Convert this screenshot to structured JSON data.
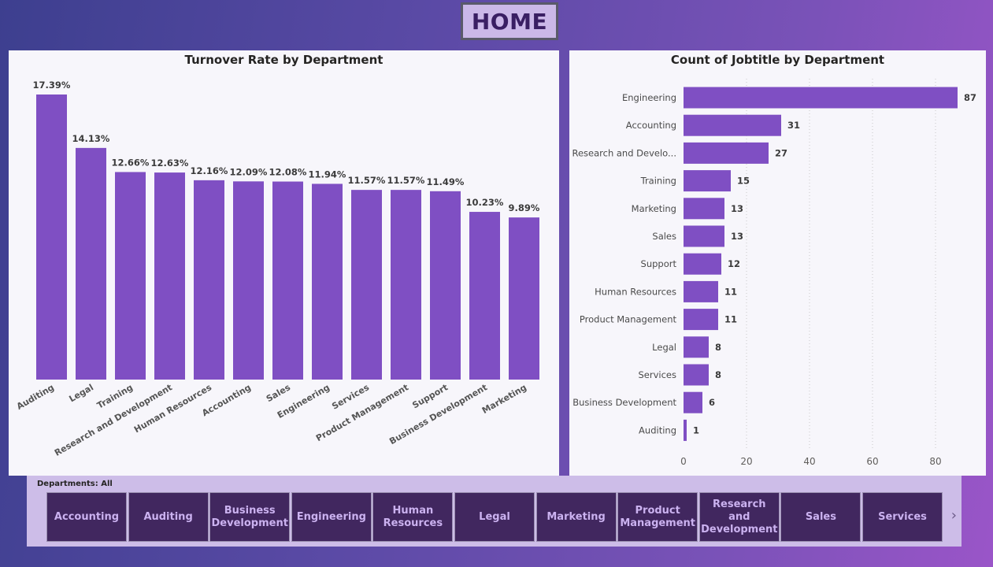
{
  "header": {
    "home_label": "HOME"
  },
  "chart_data": [
    {
      "type": "bar",
      "title": "Turnover Rate by Department",
      "categories": [
        "Auditing",
        "Legal",
        "Training",
        "Research and Development",
        "Human Resources",
        "Accounting",
        "Sales",
        "Engineering",
        "Services",
        "Product Management",
        "Support",
        "Business Development",
        "Marketing"
      ],
      "values": [
        17.39,
        14.13,
        12.66,
        12.63,
        12.16,
        12.09,
        12.08,
        11.94,
        11.57,
        11.57,
        11.49,
        10.23,
        9.89
      ],
      "data_labels": [
        "17.39%",
        "14.13%",
        "12.66%",
        "12.63%",
        "12.16%",
        "12.09%",
        "12.08%",
        "11.94%",
        "11.57%",
        "11.57%",
        "11.49%",
        "10.23%",
        "9.89%"
      ],
      "xlabel": "",
      "ylabel": "",
      "color": "#7f4fc3"
    },
    {
      "type": "bar",
      "orientation": "horizontal",
      "title": "Count of Jobtitle by Department",
      "categories": [
        "Engineering",
        "Accounting",
        "Research and Develo...",
        "Training",
        "Marketing",
        "Sales",
        "Support",
        "Human Resources",
        "Product Management",
        "Legal",
        "Services",
        "Business Development",
        "Auditing"
      ],
      "values": [
        87,
        31,
        27,
        15,
        13,
        13,
        12,
        11,
        11,
        8,
        8,
        6,
        1
      ],
      "xticks": [
        "0",
        "20",
        "40",
        "60",
        "80"
      ],
      "xlim": [
        0,
        90
      ],
      "grid": true,
      "color": "#7f4fc3"
    }
  ],
  "slicer": {
    "header": "Departments: All",
    "items": [
      "Accounting",
      "Auditing",
      "Business Development",
      "Engineering",
      "Human Resources",
      "Legal",
      "Marketing",
      "Product Management",
      "Research and Development",
      "Sales",
      "Services"
    ],
    "next_icon": "chevron-right-icon"
  }
}
